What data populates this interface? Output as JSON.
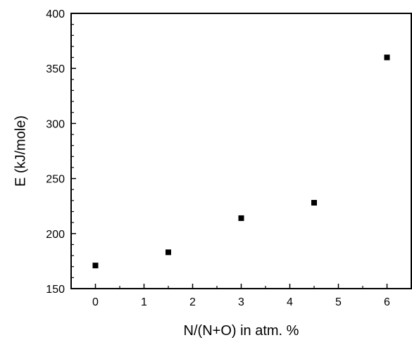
{
  "chart_data": {
    "type": "scatter",
    "title": "",
    "xlabel": "N/(N+O) in atm. %",
    "ylabel": "E (kJ/mole)",
    "xlim": [
      -0.5,
      6.5
    ],
    "ylim": [
      150,
      400
    ],
    "x_ticks": [
      0,
      1,
      2,
      3,
      4,
      5,
      6
    ],
    "y_ticks": [
      150,
      200,
      250,
      300,
      350,
      400
    ],
    "grid": false,
    "legend": "none",
    "marker": "square",
    "marker_color": "#000000",
    "series": [
      {
        "x": [
          0,
          1.5,
          3,
          4.5,
          6
        ],
        "y": [
          171,
          183,
          214,
          228,
          360
        ]
      }
    ]
  }
}
